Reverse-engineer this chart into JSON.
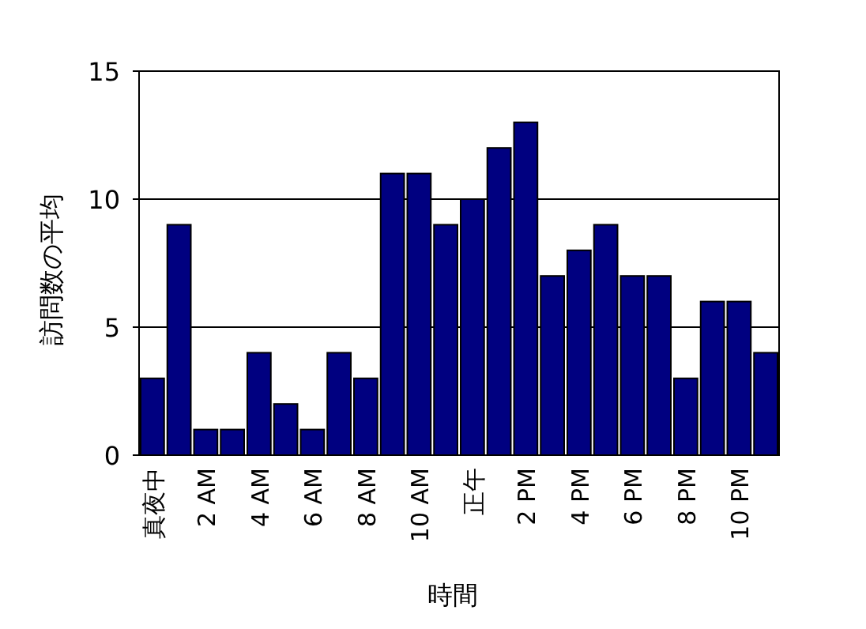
{
  "chart_data": {
    "type": "bar",
    "xlabel": "時間",
    "ylabel": "訪問数の平均",
    "categories": [
      "真夜中",
      null,
      "2 AM",
      null,
      "4 AM",
      null,
      "6 AM",
      null,
      "8 AM",
      null,
      "10 AM",
      null,
      "正午",
      null,
      "2 PM",
      null,
      "4 PM",
      null,
      "6 PM",
      null,
      "8 PM",
      null,
      "10 PM",
      null
    ],
    "values": [
      3,
      9,
      1,
      1,
      4,
      2,
      1,
      4,
      3,
      11,
      11,
      9,
      10,
      12,
      13,
      7,
      8,
      9,
      7,
      7,
      3,
      6,
      6,
      4
    ],
    "color": "#000080",
    "ylim": [
      0,
      15
    ],
    "yticks": [
      0,
      5,
      10,
      15
    ],
    "grid": "y"
  }
}
